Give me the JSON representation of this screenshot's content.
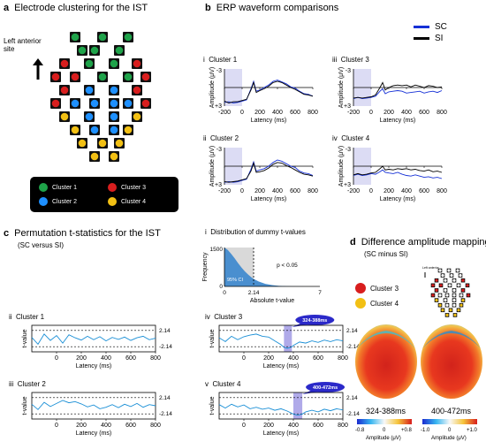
{
  "panel_a": {
    "letter": "a",
    "title": "Electrode clustering for the IST",
    "orientation_label_1": "Left anterior",
    "orientation_label_2": "site",
    "legend": [
      {
        "label": "Cluster 1",
        "color": "#1fa34a"
      },
      {
        "label": "Cluster 2",
        "color": "#1e90ff"
      },
      {
        "label": "Cluster 3",
        "color": "#d81e1e"
      },
      {
        "label": "Cluster 4",
        "color": "#f2c014"
      }
    ]
  },
  "panel_b": {
    "letter": "b",
    "title": "ERP waveform comparisons",
    "legend": [
      {
        "label": "SC",
        "color": "#1530d6"
      },
      {
        "label": "SI",
        "color": "#000000"
      }
    ],
    "ylabel": "Amplitude (μV)",
    "xlabel": "Latency (ms)",
    "y_top": "-3",
    "y_bottom": "+3",
    "xticks": [
      "-200",
      "0",
      "200",
      "400",
      "600",
      "800"
    ],
    "subplots": [
      {
        "roman": "i",
        "title": "Cluster 1"
      },
      {
        "roman": "iii",
        "title": "Cluster 3"
      },
      {
        "roman": "ii",
        "title": "Cluster 2"
      },
      {
        "roman": "iv",
        "title": "Cluster 4"
      }
    ]
  },
  "panel_c": {
    "letter": "c",
    "title": "Permutation t-statistics for the IST",
    "subtitle": "(SC versus SI)",
    "dist": {
      "roman": "i",
      "title": "Distribution of dummy t-values",
      "ylabel": "Frequency",
      "ytick_top": "1500",
      "ytick_bottom": "0",
      "xlabel": "Absolute t-value",
      "xticks": [
        "0",
        "2.14",
        "7"
      ],
      "ci_label": "95% CI",
      "p_label": "p < 0.05"
    },
    "ylabel": "t-value",
    "xlabel": "Latency (ms)",
    "threshold_pos": "2.14",
    "threshold_neg": "-2.14",
    "xticks": [
      "0",
      "200",
      "400",
      "600",
      "800"
    ],
    "subplots": [
      {
        "roman": "ii",
        "title": "Cluster 1"
      },
      {
        "roman": "iv",
        "title": "Cluster 3",
        "window": "324-388ms"
      },
      {
        "roman": "iii",
        "title": "Cluster 2"
      },
      {
        "roman": "v",
        "title": "Cluster 4",
        "window": "400-472ms"
      }
    ]
  },
  "panel_d": {
    "letter": "d",
    "title": "Difference amplitude mapping",
    "subtitle": "(SC minus SI)",
    "legend": [
      {
        "label": "Cluster 3",
        "color": "#d81e1e"
      },
      {
        "label": "Cluster 4",
        "color": "#f2c014"
      }
    ],
    "maps": [
      {
        "label": "324-388ms",
        "scale_min": "-0.8",
        "scale_mid": "0",
        "scale_max": "+0.8",
        "unit": "Amplitude (μV)"
      },
      {
        "label": "400-472ms",
        "scale_min": "-1.0",
        "scale_mid": "0",
        "scale_max": "+1.0",
        "unit": "Amplitude (μV)"
      }
    ]
  },
  "chart_data": [
    {
      "type": "line",
      "title": "Cluster 1",
      "xlabel": "Latency (ms)",
      "ylabel": "Amplitude (μV)",
      "xlim": [
        -200,
        800
      ],
      "ylim": [
        3,
        -3
      ],
      "x": [
        -200,
        -150,
        -100,
        -50,
        0,
        50,
        100,
        130,
        160,
        200,
        250,
        300,
        350,
        400,
        450,
        500,
        550,
        600,
        650,
        700,
        750,
        800
      ],
      "series": [
        {
          "name": "SC",
          "values": [
            2.4,
            2.3,
            2.5,
            2.4,
            2.2,
            2.0,
            0.2,
            -1.0,
            0.6,
            0.4,
            0.0,
            -0.4,
            -1.0,
            -1.2,
            -0.9,
            -0.6,
            -0.1,
            0.1,
            0.6,
            1.0,
            1.1,
            1.4
          ]
        },
        {
          "name": "SI",
          "values": [
            2.2,
            2.5,
            2.3,
            2.3,
            2.1,
            1.9,
            0.4,
            -0.8,
            0.8,
            0.5,
            0.2,
            -0.2,
            -0.8,
            -1.0,
            -0.8,
            -0.4,
            0.0,
            0.3,
            0.7,
            1.1,
            1.2,
            1.4
          ]
        }
      ]
    },
    {
      "type": "line",
      "title": "Cluster 3",
      "xlabel": "Latency (ms)",
      "ylabel": "Amplitude (μV)",
      "xlim": [
        -200,
        800
      ],
      "ylim": [
        3,
        -3
      ],
      "x": [
        -200,
        -150,
        -100,
        -50,
        0,
        50,
        100,
        130,
        160,
        200,
        250,
        300,
        350,
        400,
        450,
        500,
        550,
        600,
        650,
        700,
        750,
        800
      ],
      "series": [
        {
          "name": "SC",
          "values": [
            1.8,
            1.6,
            1.8,
            1.7,
            1.6,
            1.4,
            0.6,
            0.2,
            1.0,
            0.7,
            0.6,
            0.5,
            0.6,
            0.9,
            0.8,
            0.7,
            0.6,
            0.9,
            0.7,
            0.6,
            0.8,
            0.5
          ]
        },
        {
          "name": "SI",
          "values": [
            1.7,
            1.6,
            1.7,
            1.6,
            1.5,
            1.2,
            0.0,
            -0.8,
            0.4,
            0.0,
            -0.3,
            -0.4,
            -0.3,
            -0.4,
            -0.1,
            -0.4,
            -0.2,
            0.0,
            -0.3,
            -0.2,
            0.0,
            -0.1
          ]
        }
      ]
    },
    {
      "type": "line",
      "title": "Cluster 2",
      "xlabel": "Latency (ms)",
      "ylabel": "Amplitude (μV)",
      "xlim": [
        -200,
        800
      ],
      "ylim": [
        3,
        -3
      ],
      "x": [
        -200,
        -150,
        -100,
        -50,
        0,
        50,
        100,
        130,
        160,
        200,
        250,
        300,
        350,
        400,
        450,
        500,
        550,
        600,
        650,
        700,
        750,
        800
      ],
      "series": [
        {
          "name": "SC",
          "values": [
            2.6,
            2.5,
            2.6,
            2.5,
            2.3,
            2.1,
            0.5,
            -0.7,
            0.8,
            0.6,
            0.4,
            0.0,
            -0.6,
            -1.0,
            -0.8,
            -0.4,
            0.0,
            0.2,
            0.8,
            1.1,
            1.2,
            1.5
          ]
        },
        {
          "name": "SI",
          "values": [
            2.5,
            2.6,
            2.5,
            2.4,
            2.2,
            2.0,
            0.8,
            -0.5,
            1.0,
            0.9,
            0.7,
            0.3,
            -0.3,
            -0.6,
            -0.5,
            -0.1,
            0.2,
            0.6,
            1.0,
            1.3,
            1.4,
            1.6
          ]
        }
      ]
    },
    {
      "type": "line",
      "title": "Cluster 4",
      "xlabel": "Latency (ms)",
      "ylabel": "Amplitude (μV)",
      "xlim": [
        -200,
        800
      ],
      "ylim": [
        3,
        -3
      ],
      "x": [
        -200,
        -150,
        -100,
        -50,
        0,
        50,
        100,
        130,
        160,
        200,
        250,
        300,
        350,
        400,
        450,
        500,
        550,
        600,
        650,
        700,
        750,
        800
      ],
      "series": [
        {
          "name": "SC",
          "values": [
            1.5,
            1.3,
            1.5,
            1.4,
            1.2,
            1.3,
            0.9,
            0.6,
            1.0,
            1.1,
            1.2,
            1.0,
            1.3,
            1.5,
            1.6,
            1.4,
            1.6,
            1.8,
            1.7,
            1.9,
            1.8,
            2.0
          ]
        },
        {
          "name": "SI",
          "values": [
            1.4,
            1.2,
            1.4,
            1.3,
            1.1,
            1.0,
            0.4,
            0.0,
            0.6,
            0.5,
            0.6,
            0.4,
            0.5,
            0.4,
            0.6,
            0.5,
            0.7,
            0.8,
            0.6,
            0.9,
            0.8,
            1.0
          ]
        }
      ]
    },
    {
      "type": "area",
      "title": "Distribution of dummy t-values",
      "xlabel": "Absolute t-value",
      "ylabel": "Frequency",
      "xlim": [
        0,
        7
      ],
      "ylim": [
        0,
        1500
      ],
      "x": [
        0,
        0.25,
        0.5,
        0.75,
        1.0,
        1.25,
        1.5,
        1.75,
        2.0,
        2.14,
        2.5,
        3.0,
        3.5,
        4.0,
        5.0,
        6.0,
        7.0
      ],
      "values": [
        1500,
        1400,
        1250,
        1080,
        900,
        730,
        580,
        450,
        340,
        290,
        190,
        100,
        50,
        20,
        5,
        1,
        0
      ]
    },
    {
      "type": "line",
      "title": "Cluster 1",
      "xlabel": "Latency (ms)",
      "ylabel": "t-value",
      "xlim": [
        -200,
        800
      ],
      "x": [
        -200,
        -150,
        -100,
        -50,
        0,
        50,
        100,
        150,
        200,
        250,
        300,
        350,
        400,
        450,
        500,
        550,
        600,
        650,
        700,
        750,
        800
      ],
      "series": [
        {
          "name": "t-value",
          "values": [
            0.3,
            -1.5,
            1.2,
            -0.5,
            0.8,
            -1.2,
            1.0,
            0.2,
            -0.4,
            0.6,
            -0.3,
            0.5,
            -0.6,
            0.3,
            -0.2,
            0.4,
            -0.5,
            0.2,
            0.6,
            -0.3,
            0.1
          ]
        }
      ]
    },
    {
      "type": "line",
      "title": "Cluster 3",
      "xlabel": "Latency (ms)",
      "ylabel": "t-value",
      "xlim": [
        -200,
        800
      ],
      "x": [
        -200,
        -150,
        -100,
        -50,
        0,
        50,
        100,
        150,
        200,
        250,
        300,
        324,
        350,
        388,
        400,
        450,
        500,
        550,
        600,
        650,
        700,
        750,
        800
      ],
      "series": [
        {
          "name": "t-value",
          "values": [
            0.2,
            -0.8,
            0.6,
            -0.3,
            0.5,
            0.9,
            1.2,
            0.6,
            0.4,
            -0.6,
            -1.6,
            -2.3,
            -2.6,
            -2.2,
            -1.8,
            -0.9,
            -1.2,
            -0.6,
            -1.0,
            -0.4,
            -0.8,
            -0.3,
            -0.6
          ]
        }
      ]
    },
    {
      "type": "line",
      "title": "Cluster 2",
      "xlabel": "Latency (ms)",
      "ylabel": "t-value",
      "xlim": [
        -200,
        800
      ],
      "x": [
        -200,
        -150,
        -100,
        -50,
        0,
        50,
        100,
        150,
        200,
        250,
        300,
        350,
        400,
        450,
        500,
        550,
        600,
        650,
        700,
        750,
        800
      ],
      "series": [
        {
          "name": "t-value",
          "values": [
            0.4,
            -1.0,
            0.9,
            -0.2,
            0.6,
            1.4,
            0.8,
            1.1,
            0.5,
            -0.3,
            0.2,
            -0.8,
            -0.4,
            0.3,
            -0.5,
            0.4,
            -0.2,
            0.6,
            -0.4,
            0.3,
            0.0
          ]
        }
      ]
    },
    {
      "type": "line",
      "title": "Cluster 4",
      "xlabel": "Latency (ms)",
      "ylabel": "t-value",
      "xlim": [
        -200,
        800
      ],
      "x": [
        -200,
        -150,
        -100,
        -50,
        0,
        50,
        100,
        150,
        200,
        250,
        300,
        350,
        400,
        436,
        472,
        500,
        550,
        600,
        650,
        700,
        750,
        800
      ],
      "series": [
        {
          "name": "t-value",
          "values": [
            0.3,
            -0.6,
            0.4,
            -0.3,
            0.2,
            -0.8,
            -0.4,
            -0.9,
            -0.6,
            -1.2,
            -0.8,
            -1.4,
            -2.2,
            -2.5,
            -2.2,
            -1.6,
            -1.2,
            -1.6,
            -0.9,
            -1.3,
            -0.8,
            -1.1
          ]
        }
      ]
    }
  ]
}
